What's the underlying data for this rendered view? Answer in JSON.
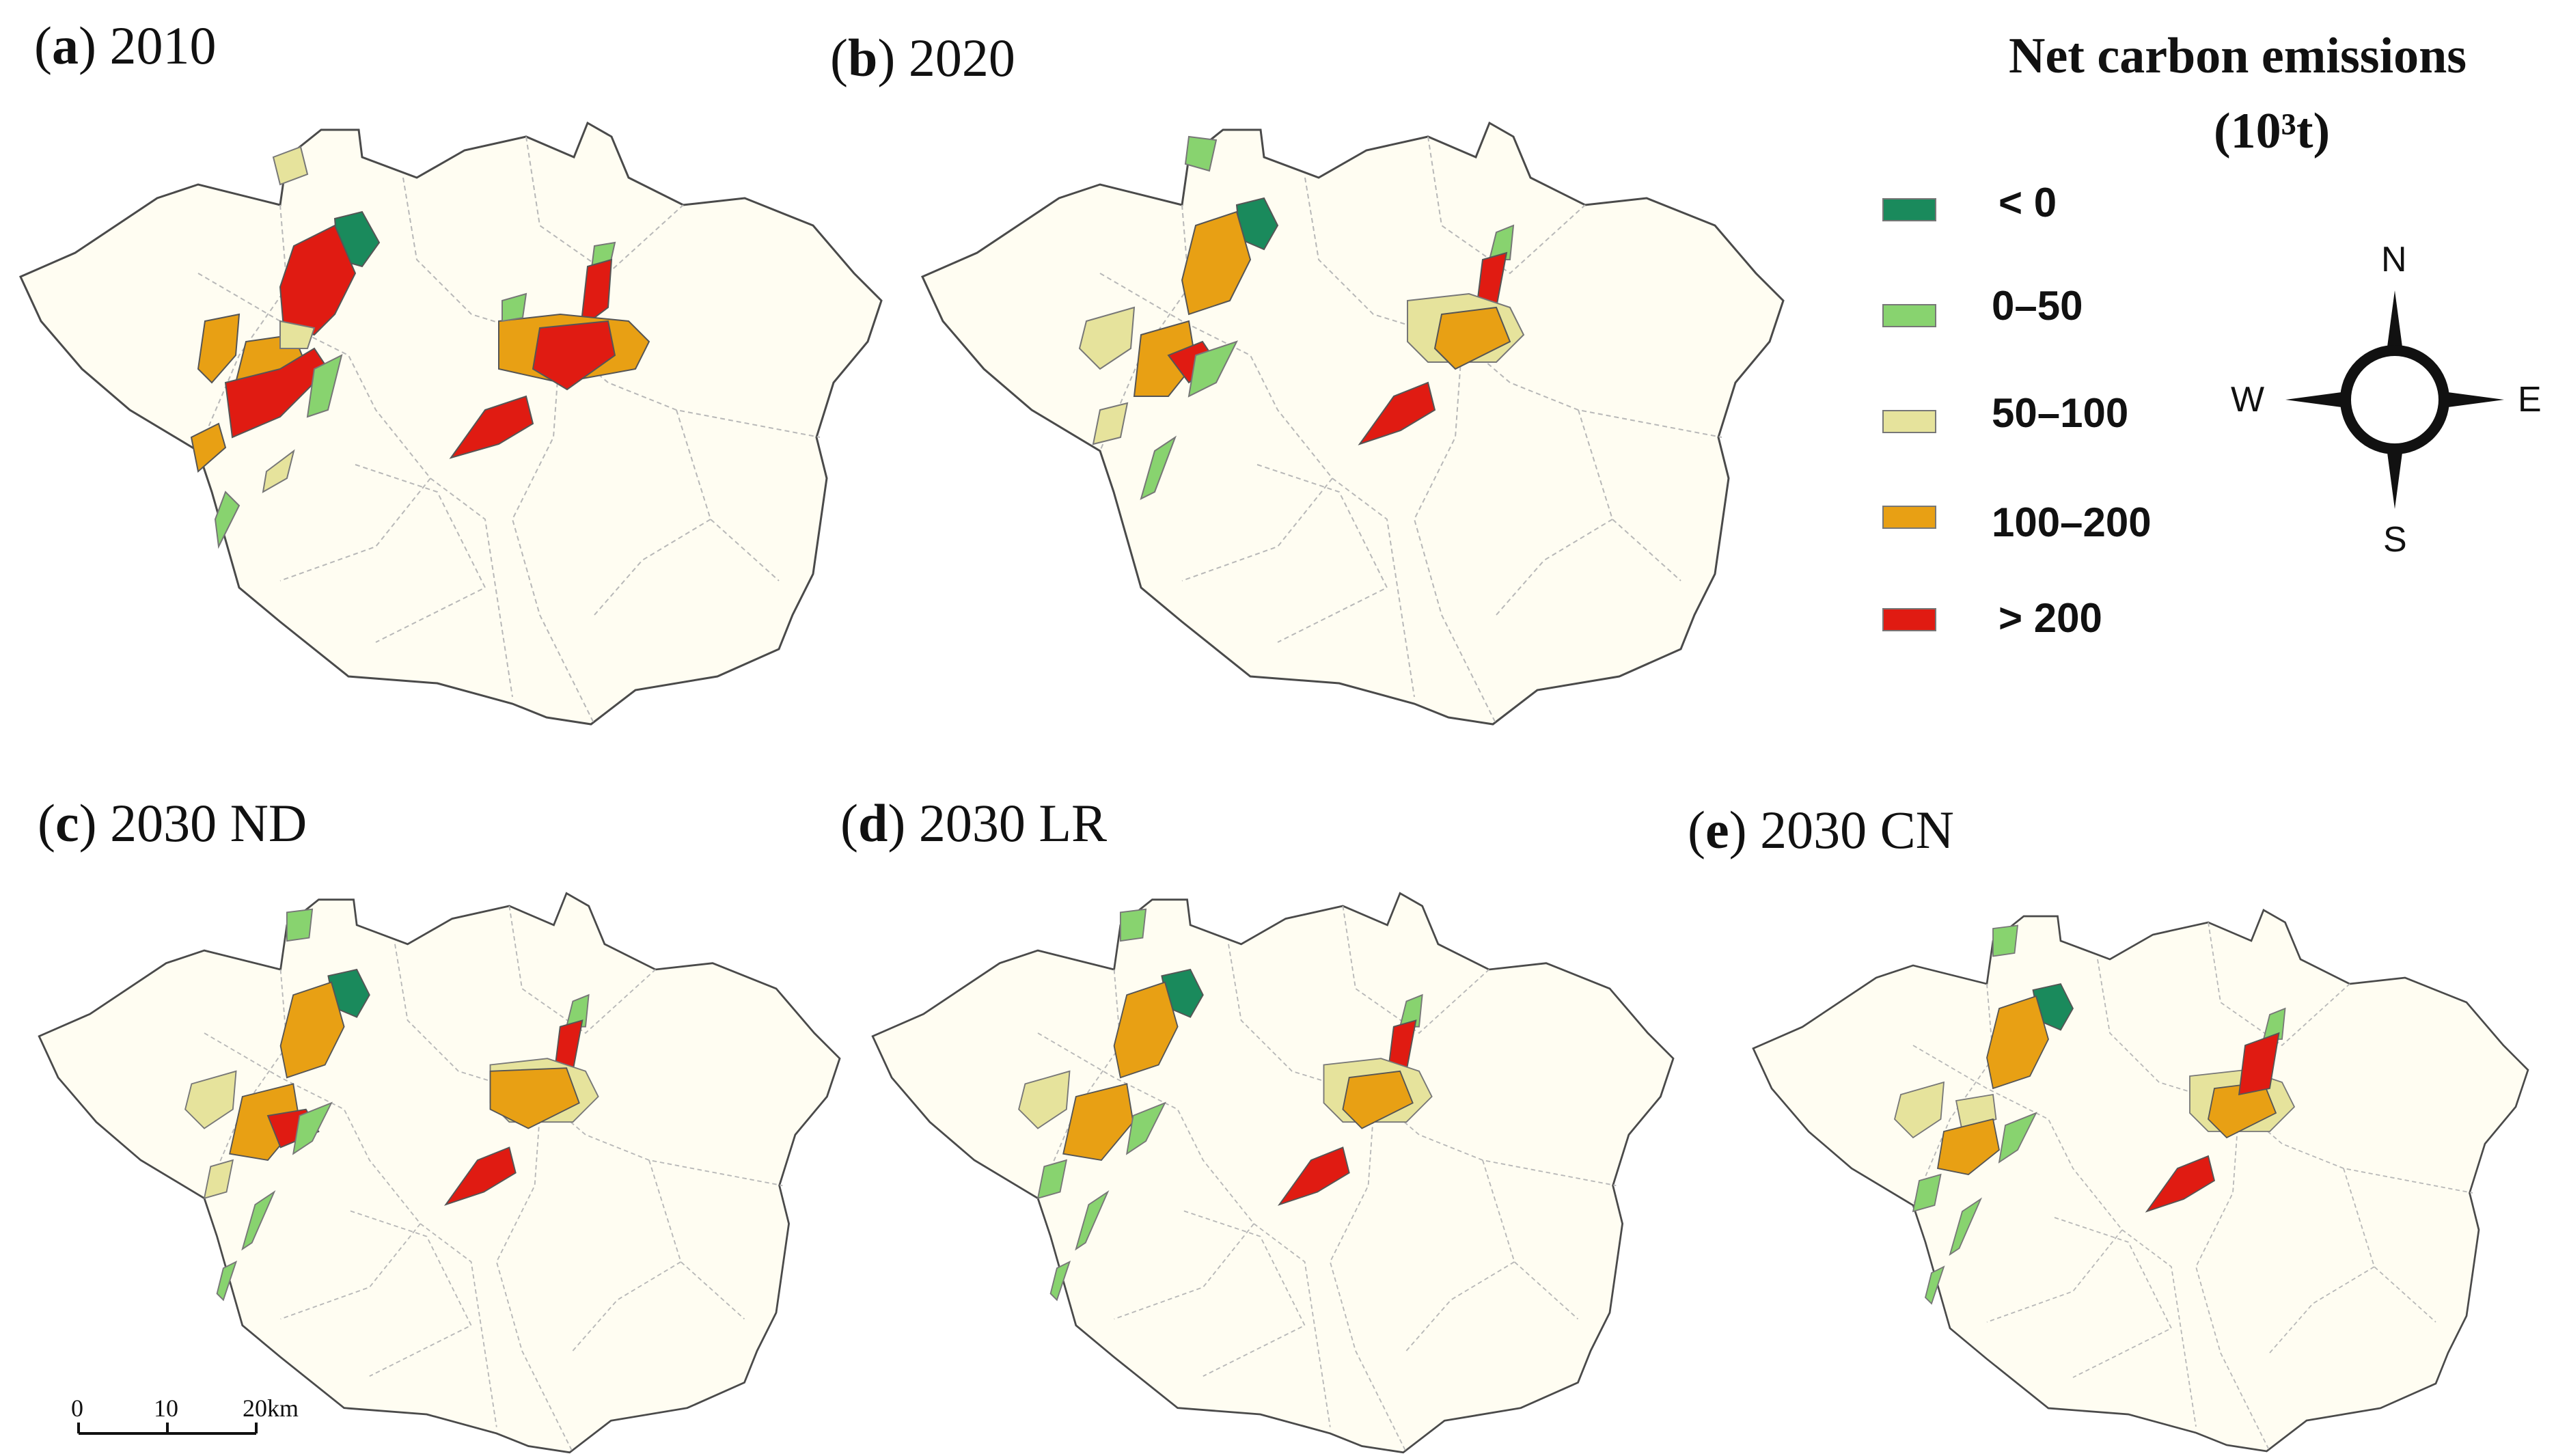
{
  "panels": [
    {
      "id": "a",
      "letter": "a",
      "title": " 2010"
    },
    {
      "id": "b",
      "letter": "b",
      "title": " 2020"
    },
    {
      "id": "c",
      "letter": "c",
      "title": " 2030 ND"
    },
    {
      "id": "d",
      "letter": "d",
      "title": " 2030 LR"
    },
    {
      "id": "e",
      "letter": "e",
      "title": " 2030 CN"
    }
  ],
  "legend": {
    "title_line1": "Net carbon emissions",
    "title_line2": "(10³t)",
    "items": [
      {
        "label": "< 0",
        "color": "#1a8a5c"
      },
      {
        "label": "0–50",
        "color": "#88d36f"
      },
      {
        "label": "50–100",
        "color": "#e6e39c"
      },
      {
        "label": "100–200",
        "color": "#e8a014"
      },
      {
        "label": "> 200",
        "color": "#e01b12"
      }
    ]
  },
  "compass": {
    "n": "N",
    "s": "S",
    "e": "E",
    "w": "W"
  },
  "scale_bar": {
    "ticks": [
      "0",
      "10",
      "20km"
    ]
  },
  "map_colors": {
    "land": "#fffdf2",
    "outline": "#4a4a4a",
    "district": "#b3b3b3"
  }
}
